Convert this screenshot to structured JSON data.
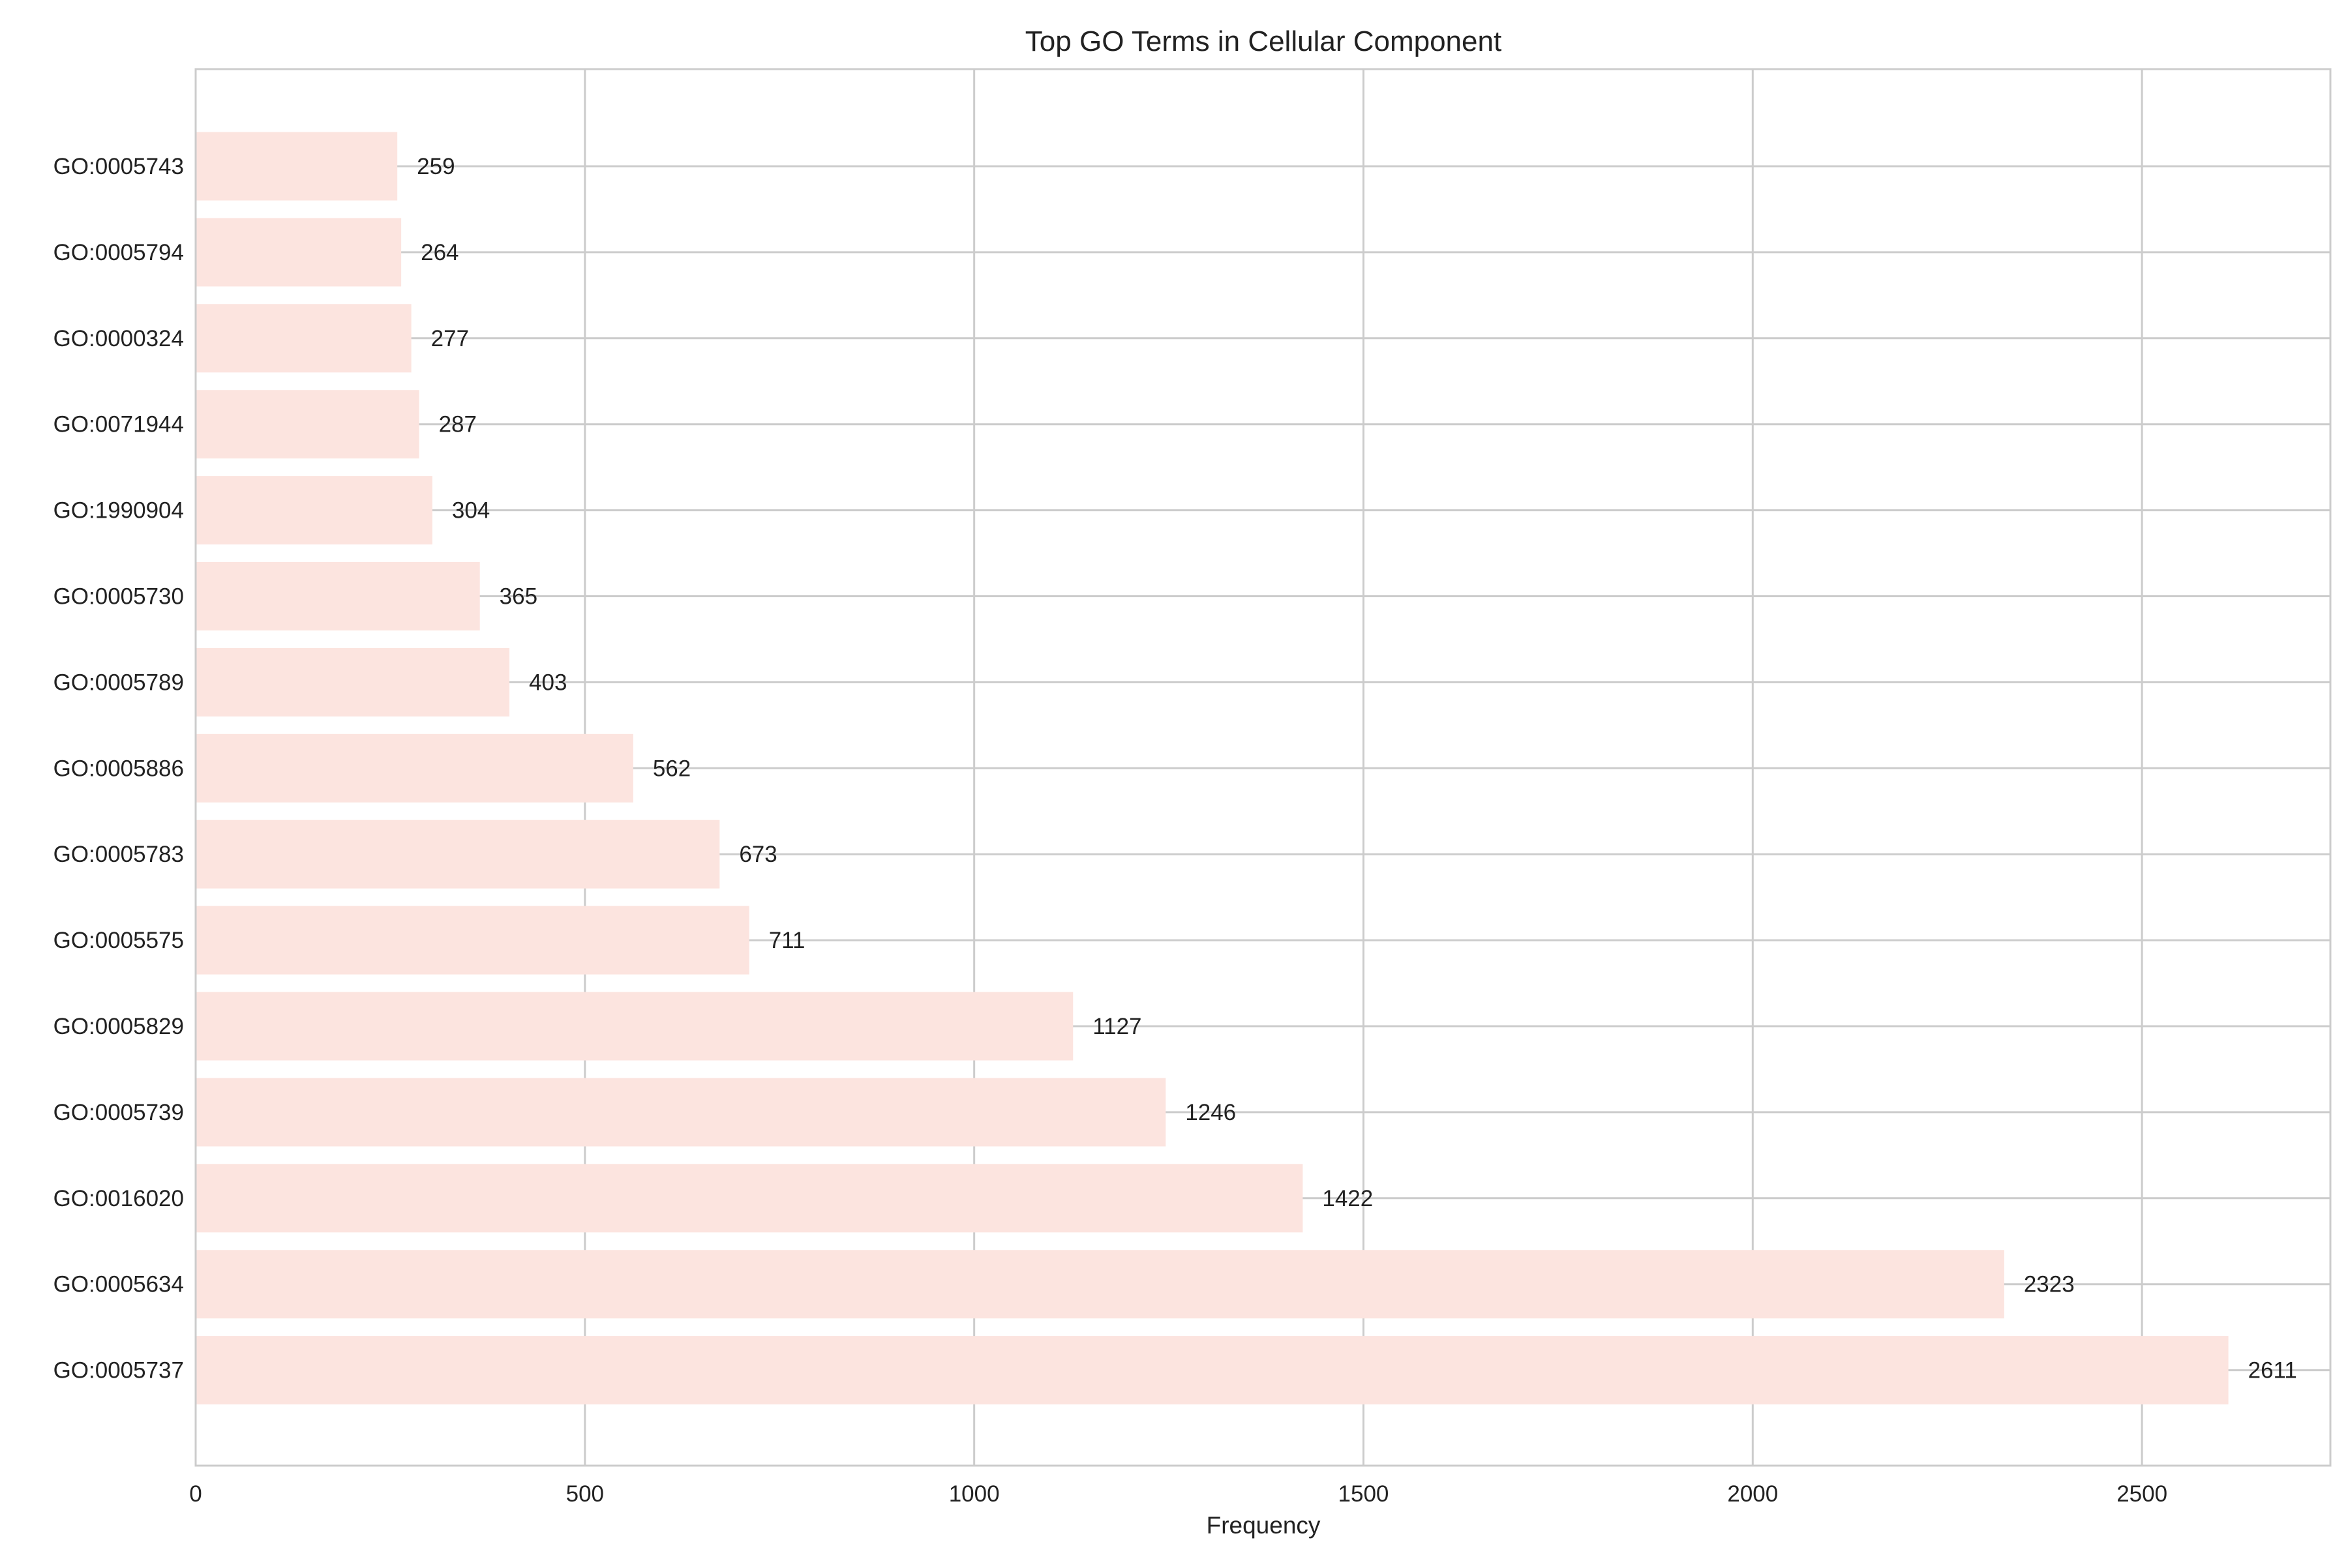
{
  "chart_data": {
    "type": "bar",
    "orientation": "horizontal",
    "title": "Top GO Terms in Cellular Component",
    "xlabel": "Frequency",
    "ylabel": "",
    "categories": [
      "GO:0005743",
      "GO:0005794",
      "GO:0000324",
      "GO:0071944",
      "GO:1990904",
      "GO:0005730",
      "GO:0005789",
      "GO:0005886",
      "GO:0005783",
      "GO:0005575",
      "GO:0005829",
      "GO:0005739",
      "GO:0016020",
      "GO:0005634",
      "GO:0005737"
    ],
    "values": [
      259,
      264,
      277,
      287,
      304,
      365,
      403,
      562,
      673,
      711,
      1127,
      1246,
      1422,
      2323,
      2611
    ],
    "data_labels": [
      "259",
      "264",
      "277",
      "287",
      "304",
      "365",
      "403",
      "562",
      "673",
      "711",
      "1127",
      "1246",
      "1422",
      "2323",
      "2611"
    ],
    "xlim": [
      0,
      2742
    ],
    "xticks": [
      0,
      500,
      1000,
      1500,
      2000,
      2500
    ],
    "xtick_labels": [
      "0",
      "500",
      "1000",
      "1500",
      "2000",
      "2500"
    ],
    "grid": true,
    "legend": "none",
    "bar_color": "#fce4df",
    "grid_color": "#cccccc",
    "text_color": "#222222"
  }
}
